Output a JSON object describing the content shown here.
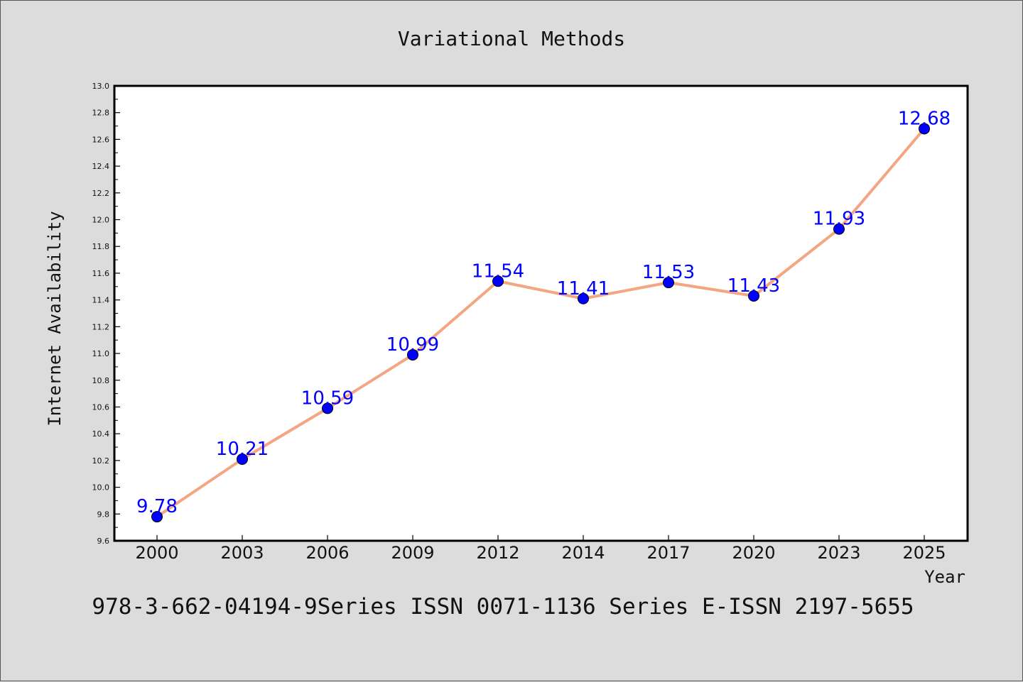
{
  "chart_data": {
    "type": "line",
    "title": "Variational Methods",
    "xlabel": "Year",
    "ylabel": "Internet Availability",
    "categories": [
      "2000",
      "2003",
      "2006",
      "2009",
      "2012",
      "2014",
      "2017",
      "2020",
      "2023",
      "2025"
    ],
    "series": [
      {
        "values": [
          9.78,
          10.21,
          10.59,
          10.99,
          11.54,
          11.41,
          11.53,
          11.43,
          11.93,
          12.68
        ],
        "labels": [
          "9.78",
          "10.21",
          "10.59",
          "10.99",
          "11.54",
          "11.41",
          "11.53",
          "11.43",
          "11.93",
          "12.68"
        ],
        "line_color": "#f4a582",
        "marker_color": "#0000ff"
      }
    ],
    "ylim": [
      9.6,
      13.0
    ],
    "yticks": [
      "9.6",
      "9.8",
      "10.0",
      "10.2",
      "10.4",
      "10.6",
      "10.8",
      "11.0",
      "11.2",
      "11.4",
      "11.6",
      "11.8",
      "12.0",
      "12.2",
      "12.4",
      "12.6",
      "12.8",
      "13.0"
    ],
    "grid": false,
    "legend": "none",
    "footnote": "978-3-662-04194-9Series ISSN 0071-1136 Series E-ISSN 2197-5655"
  }
}
